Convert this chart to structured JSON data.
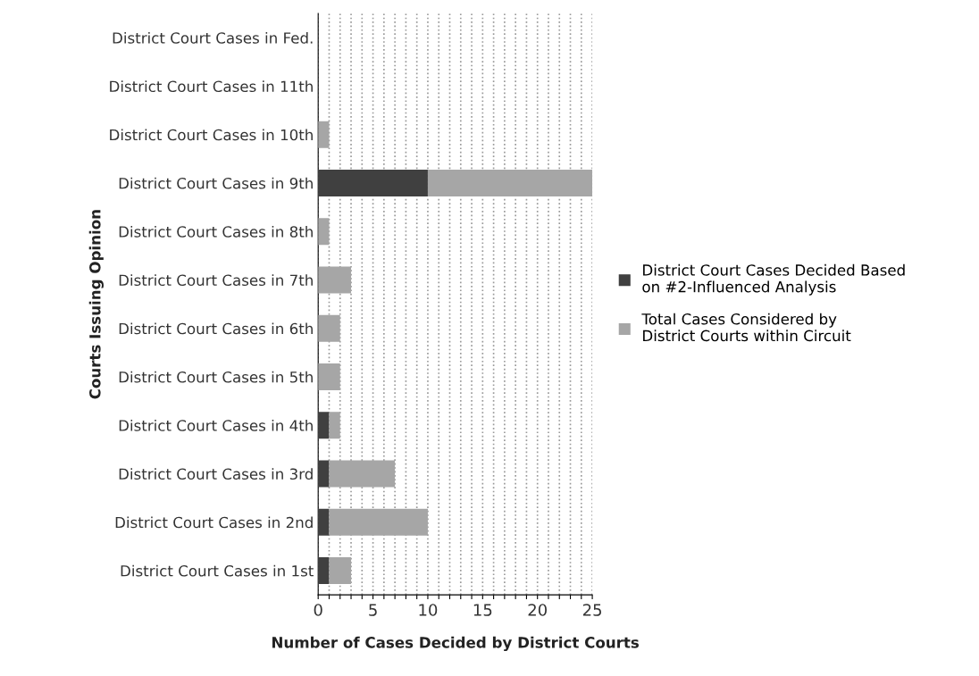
{
  "chart_data": {
    "type": "bar",
    "orientation": "horizontal",
    "stacked": true,
    "xlabel": "Number of Cases Decided by District Courts",
    "ylabel": "Courts Issuing Opinion",
    "categories": [
      "District Court Cases in Fed.",
      "District Court Cases in 11th",
      "District Court Cases in 10th",
      "District Court Cases in 9th",
      "District Court Cases in 8th",
      "District Court Cases in 7th",
      "District Court Cases in 6th",
      "District Court Cases in 5th",
      "District Court Cases in 4th",
      "District Court Cases in 3rd",
      "District Court Cases in 2nd",
      "District Court Cases in 1st"
    ],
    "series": [
      {
        "name": "District Court Cases Decided Based on #2-Influenced Analysis",
        "color": "#404040",
        "values": [
          0,
          0,
          0,
          10,
          0,
          0,
          0,
          0,
          1,
          1,
          1,
          1
        ]
      },
      {
        "name": "Total Cases Considered by District Courts within Circuit",
        "color": "#a6a6a6",
        "values": [
          0,
          0,
          1,
          15,
          1,
          3,
          2,
          2,
          1,
          6,
          9,
          2
        ]
      }
    ],
    "xlim": [
      0,
      25
    ],
    "xticks": [
      0,
      {
        "value": 1,
        "label": null
      },
      {
        "value": 2,
        "label": null
      },
      {
        "value": 3,
        "label": null
      },
      {
        "value": 4,
        "label": null
      },
      5,
      {
        "value": 6,
        "label": null
      },
      {
        "value": 7,
        "label": null
      },
      {
        "value": 8,
        "label": null
      },
      {
        "value": 9,
        "label": null
      },
      10,
      {
        "value": 11,
        "label": null
      },
      {
        "value": 12,
        "label": null
      },
      {
        "value": 13,
        "label": null
      },
      {
        "value": 14,
        "label": null
      },
      15,
      {
        "value": 16,
        "label": null
      },
      {
        "value": 17,
        "label": null
      },
      {
        "value": 18,
        "label": null
      },
      {
        "value": 19,
        "label": null
      },
      20,
      {
        "value": 21,
        "label": null
      },
      {
        "value": 22,
        "label": null
      },
      {
        "value": 23,
        "label": null
      },
      {
        "value": 24,
        "label": null
      },
      25
    ],
    "grid": "x",
    "legend": "right"
  }
}
